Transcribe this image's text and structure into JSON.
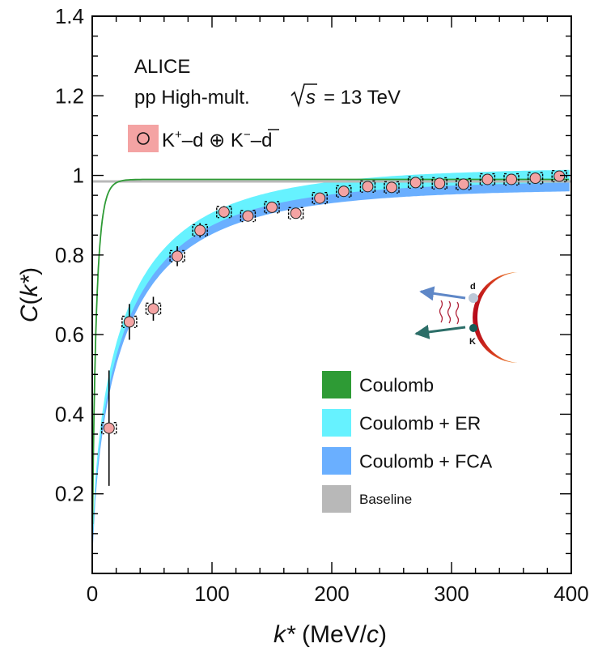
{
  "chart_data": {
    "type": "scatter",
    "experiment": "ALICE",
    "system_label": "pp High-mult.",
    "energy": {
      "symbol": "s",
      "value": "= 13 TeV"
    },
    "data_legend": {
      "text_a": "K",
      "sup_a": "+",
      "text_b": "–d ⊕ K",
      "sup_b": "−",
      "text_c": "–",
      "text_d": "d"
    },
    "xlabel": {
      "var": "k*",
      "rest": " (MeV/",
      "unit_var": "c",
      "close": ")"
    },
    "ylabel": {
      "var": "C",
      "open": "(",
      "arg": "k*",
      "close": ")"
    },
    "xlim": [
      0,
      400
    ],
    "ylim": [
      0,
      1.4
    ],
    "x_ticks": [
      0,
      100,
      200,
      300,
      400
    ],
    "x_tick_labels": [
      "0",
      "100",
      "200",
      "300",
      "400"
    ],
    "y_ticks": [
      0.2,
      0.4,
      0.6,
      0.8,
      1.0,
      1.2,
      1.4
    ],
    "y_tick_labels": [
      "0.2",
      "0.4",
      "0.6",
      "0.8",
      "1",
      "1.2",
      "1.4"
    ],
    "series": [
      {
        "name": "K+–d ⊕ K−–d̄",
        "x": [
          14,
          31,
          51,
          71,
          90,
          110,
          130,
          150,
          170,
          190,
          210,
          230,
          250,
          270,
          290,
          310,
          330,
          350,
          370,
          390
        ],
        "y": [
          0.365,
          0.632,
          0.665,
          0.797,
          0.862,
          0.908,
          0.898,
          0.92,
          0.905,
          0.943,
          0.96,
          0.972,
          0.97,
          0.982,
          0.98,
          0.978,
          0.99,
          0.99,
          0.993,
          0.998
        ],
        "stat_err": [
          0.145,
          0.045,
          0.03,
          0.025,
          0.018,
          0.015,
          0.012,
          0.012,
          0.012,
          0.01,
          0.01,
          0.008,
          0.008,
          0.008,
          0.008,
          0.008,
          0.008,
          0.008,
          0.008,
          0.008
        ],
        "syst_err": [
          0.01,
          0.01,
          0.01,
          0.01,
          0.01,
          0.01,
          0.01,
          0.01,
          0.01,
          0.01,
          0.01,
          0.01,
          0.01,
          0.01,
          0.01,
          0.01,
          0.01,
          0.01,
          0.01,
          0.01
        ],
        "color": "#f4a3a3"
      }
    ],
    "model_legend": [
      {
        "key": "coulomb",
        "name": "Coulomb",
        "color": "#2e9b35"
      },
      {
        "key": "er",
        "name": "Coulomb + ER",
        "color": "#66f2ff"
      },
      {
        "key": "fca",
        "name": "Coulomb + FCA",
        "color": "#6aafff"
      },
      {
        "key": "baseline",
        "name": "Baseline",
        "color": "#b8b8b8"
      }
    ],
    "baseline_value": 0.985,
    "inset_labels": {
      "d": "d",
      "k": "K"
    }
  }
}
